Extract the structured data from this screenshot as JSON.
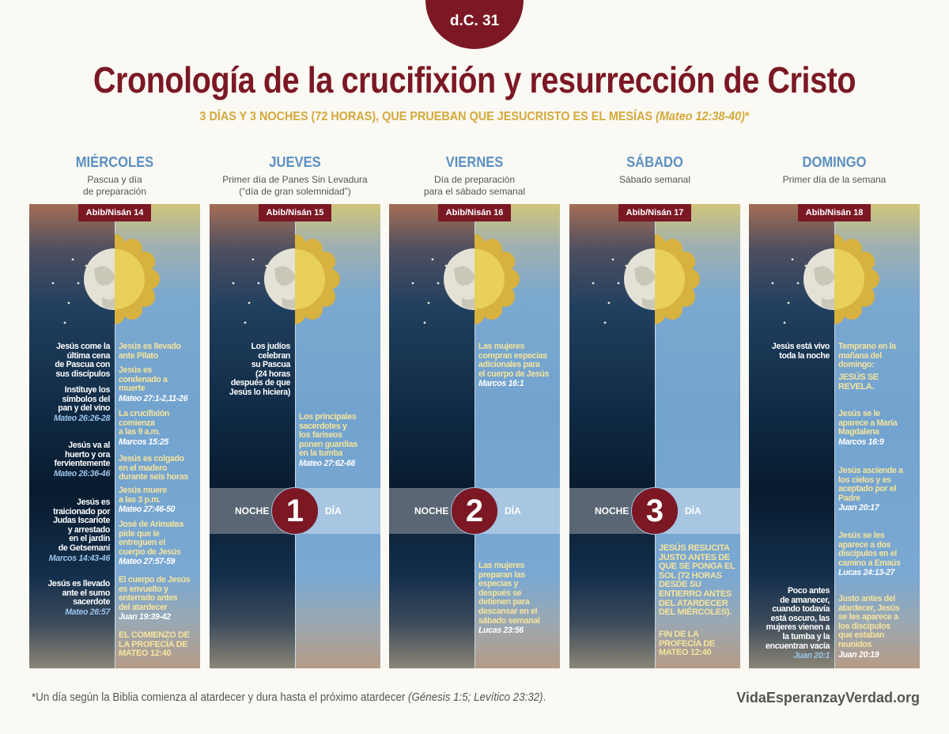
{
  "header": {
    "era": "d.C. 31",
    "title": "Cronología de la crucifixión y resurrección de Cristo",
    "subtitle": "3 DÍAS Y 3 NOCHES (72 HORAS), QUE PRUEBAN QUE JESUCRISTO ES EL MESÍAS",
    "subtitle_ref": "(Mateo 12:38-40)",
    "subtitle_mark": "*"
  },
  "band_labels": {
    "night": "NOCHE",
    "day": "DÍA"
  },
  "days": [
    {
      "name": "MIÉRCOLES",
      "subtitle": "Pascua y día\nde preparación",
      "date": "Abib/Nisán 14",
      "band": null,
      "night": [
        {
          "text": "Jesús come la\núltima cena\nde Pascua con\nsus discípulos",
          "ref": ""
        },
        {
          "text": "Instituye los\nsímbolos del\npan y del vino",
          "ref": "Mateo 26:26-28"
        },
        {
          "text": "Jesús va al\nhuerto y ora\nfervientemente",
          "ref": "Mateo 26:36-46"
        },
        {
          "text": "Jesús es\ntraicionado por\nJudas Iscariote\ny arrestado\nen el jardín\nde Getsemaní",
          "ref": "Marcos 14:43-46"
        },
        {
          "text": "Jesús es llevado\nante el sumo\nsacerdote",
          "ref": "Mateo 26:57"
        }
      ],
      "day": [
        {
          "text": "Jesús es llevado\nante Pilato",
          "ref": ""
        },
        {
          "text": "Jesús es\ncondenado a\nmuerte",
          "ref": "Mateo 27:1-2,11-26"
        },
        {
          "text": "La crucifixión\ncomienza\na las 9 a.m.",
          "ref": "Marcos 15:25"
        },
        {
          "text": "Jesús es colgado\nen el madero\ndurante seis horas",
          "ref": ""
        },
        {
          "text": "Jesús muere\na las 3 p.m.",
          "ref": "Mateo 27:46-50"
        },
        {
          "text": "José de Arimatea\npide que le\nentreguen el\ncuerpo de Jesús",
          "ref": "Mateo 27:57-59"
        },
        {
          "text": "El cuerpo de Jesús\nes envuelto y\nenterrado antes\ndel atardecer",
          "ref": "Juan 19:39-42"
        },
        {
          "text": "EL COMIENZO DE\nLA PROFECÍA DE\nMATEO 12:40",
          "ref": "",
          "caps": true
        }
      ]
    },
    {
      "name": "JUEVES",
      "subtitle": "Primer día de Panes Sin Levadura\n(“día de gran solemnidad”)",
      "date": "Abib/Nisán 15",
      "band": "1",
      "night": [
        {
          "text": "Los judíos\ncelebran\nsu Pascua\n(24 horas\ndespués de que\nJesús lo hiciera)",
          "ref": ""
        }
      ],
      "day": [
        {
          "text": "Los principales\nsacerdotes y\nlos fariseos\nponen guardias\nen la tumba",
          "ref": "Mateo 27:62-66"
        }
      ]
    },
    {
      "name": "VIERNES",
      "subtitle": "Día de preparación\npara el sábado semanal",
      "date": "Abib/Nisán 16",
      "band": "2",
      "night": [],
      "day": [
        {
          "text": "Las mujeres\ncompran especias\nadicionales para\nel cuerpo de Jesús",
          "ref": "Marcos 16:1"
        },
        {
          "text": "Las mujeres\npreparan las\nespecias y\ndespués se\ndetienen para\ndescansar en el\nsábado semanal",
          "ref": "Lucas 23:56"
        }
      ]
    },
    {
      "name": "SÁBADO",
      "subtitle": "Sábado semanal",
      "date": "Abib/Nisán 17",
      "band": "3",
      "night": [],
      "day": [
        {
          "text": "JESÚS RESUCITA\nJUSTO ANTES DE\nQUE SE PONGA EL\nSOL (72 HORAS\nDESDE SU\nENTIERRO ANTES\nDEL ATARDECER\nDEL MIÉRCOLES).",
          "ref": "",
          "caps": true
        },
        {
          "text": "FIN DE LA\nPROFECÍA DE\nMATEO 12:40",
          "ref": "",
          "caps": true
        }
      ]
    },
    {
      "name": "DOMINGO",
      "subtitle": "Primer día de la semana",
      "date": "Abib/Nisán 18",
      "band": null,
      "night": [
        {
          "text": "Jesús está vivo\ntoda la noche",
          "ref": ""
        },
        {
          "text": "Poco antes\nde amanecer,\ncuando todavía\nestá oscuro, las\nmujeres vienen a\nla tumba y la\nencuentran vacía",
          "ref": "Juan 20:1"
        }
      ],
      "day": [
        {
          "text": "Temprano en la\nmañana del\ndomingo:",
          "ref": ""
        },
        {
          "text": "JESÚS SE\nREVELA.",
          "ref": "",
          "caps": true
        },
        {
          "text": "Jesús se le\naparece a María\nMagdalena",
          "ref": "Marcos 16:9"
        },
        {
          "text": "Jesús asciende a\nlos cielos y es\naceptado por el\nPadre",
          "ref": "Juan 20:17"
        },
        {
          "text": "Jesús se les\naparece a dos\ndiscípulos en el\ncamino a Emaús",
          "ref": "Lucas 24:13-27"
        },
        {
          "text": "Justo antes del\natardecer, Jesús\nse les aparece a\nlos discípulos\nque estaban\nreunidos",
          "ref": "Juan 20:19"
        }
      ]
    }
  ],
  "footer": {
    "note": "*Un día según la Biblia comienza al atardecer y dura hasta el próximo atardecer",
    "note_ref": "(Génesis 1:5; Levítico 23:32)",
    "note_end": ".",
    "site": "VidaEsperanzayVerdad.org"
  },
  "colors": {
    "accent": "#7b1824",
    "gold": "#d5a93a",
    "blue": "#5b90c2"
  }
}
